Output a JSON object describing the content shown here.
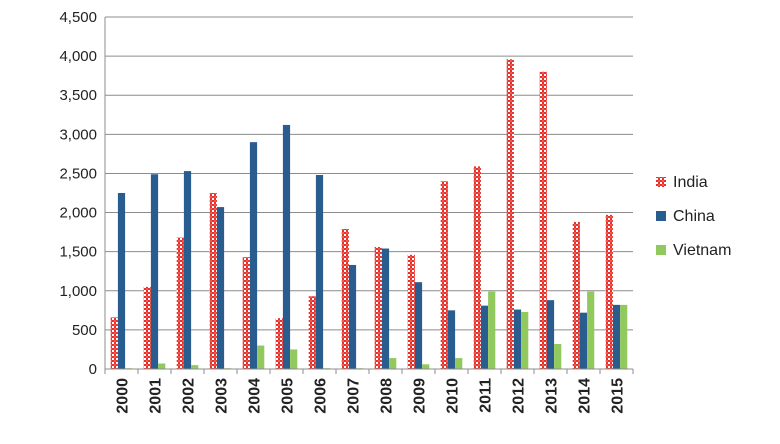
{
  "chart_data": {
    "type": "bar",
    "title": "",
    "xlabel": "",
    "ylabel": "",
    "ylim": [
      0,
      4500
    ],
    "yticks": [
      0,
      500,
      1000,
      1500,
      2000,
      2500,
      3000,
      3500,
      4000,
      4500
    ],
    "ytick_labels": [
      "0",
      "500",
      "1,000",
      "1,500",
      "2,000",
      "2,500",
      "3,000",
      "3,500",
      "4,000",
      "4,500"
    ],
    "grid": true,
    "legend_position": "right",
    "categories": [
      "2000",
      "2001",
      "2002",
      "2003",
      "2004",
      "2005",
      "2006",
      "2007",
      "2008",
      "2009",
      "2010",
      "2011",
      "2012",
      "2013",
      "2014",
      "2015"
    ],
    "series": [
      {
        "name": "India",
        "color": "#e8302a",
        "values": [
          660,
          1050,
          1680,
          2250,
          1430,
          650,
          930,
          1790,
          1560,
          1460,
          2400,
          2590,
          3960,
          3800,
          1880,
          1970
        ]
      },
      {
        "name": "China",
        "color": "#2a5d8f",
        "values": [
          2250,
          2490,
          2530,
          2070,
          2900,
          3120,
          2480,
          1330,
          1540,
          1110,
          750,
          810,
          760,
          880,
          720,
          820
        ]
      },
      {
        "name": "Vietnam",
        "color": "#92c95f",
        "values": [
          10,
          70,
          50,
          10,
          300,
          250,
          10,
          10,
          140,
          60,
          140,
          990,
          730,
          320,
          990,
          820
        ]
      }
    ]
  }
}
